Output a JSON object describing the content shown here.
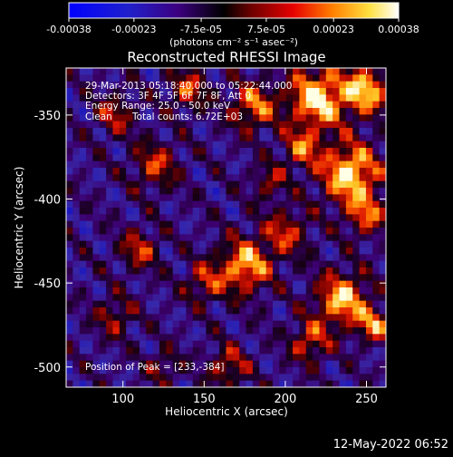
{
  "colorbar": {
    "ticks": [
      "-0.00038",
      "-0.00023",
      "-7.5e-05",
      "7.5e-05",
      "0.00023",
      "0.00038"
    ],
    "tick_values": [
      -0.00038,
      -0.00023,
      -7.5e-05,
      7.5e-05,
      0.00023,
      0.00038
    ],
    "range": [
      -0.00038,
      0.00038
    ],
    "unit_label": "(photons cm⁻² s⁻¹ asec⁻²)"
  },
  "chart_data": {
    "type": "heatmap",
    "title": "Reconstructed RHESSI Image",
    "xlabel": "Heliocentric X (arcsec)",
    "ylabel": "Heliocentric Y (arcsec)",
    "xlim": [
      65,
      262
    ],
    "ylim": [
      -512,
      -322
    ],
    "xticks": [
      100,
      150,
      200,
      250
    ],
    "yticks": [
      -350,
      -400,
      -450,
      -500
    ],
    "colormap": "red-temperature",
    "annotations": {
      "time_range": "29-Mar-2013 05:18:40.000 to 05:22:44.000",
      "detectors": "Detectors: 3F 4F 5F 6F 7F 8F, Att 0",
      "energy": "Energy Range: 25.0 - 50.0 keV",
      "method": "Clean",
      "counts": "Total counts: 6.72E+03",
      "peak": "Position of Peak = [233,-384]"
    },
    "peak_position": [
      233,
      -384
    ]
  },
  "footer": {
    "date": "12-May-2022 06:52"
  }
}
